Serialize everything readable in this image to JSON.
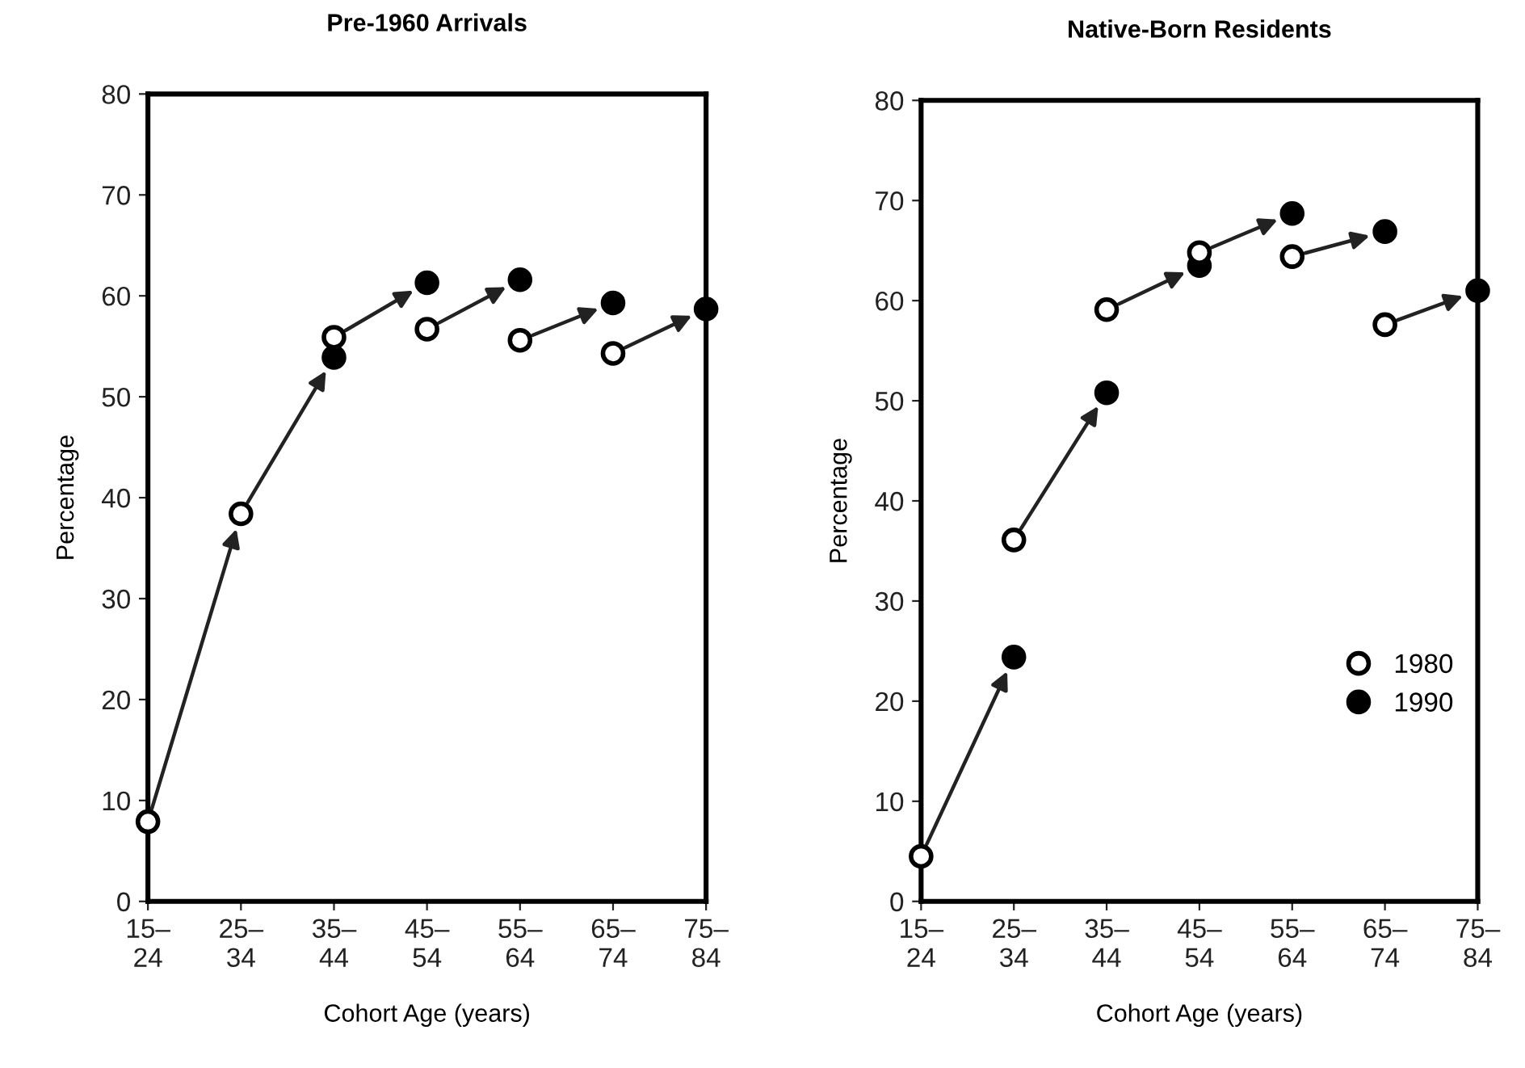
{
  "chart_data": [
    {
      "type": "scatter",
      "title": "Pre-1960 Arrivals",
      "xlabel": "Cohort Age (years)",
      "ylabel": "Percentage",
      "categories": [
        "15–\n24",
        "25–\n34",
        "35–\n44",
        "45–\n54",
        "55–\n64",
        "65–\n74",
        "75–\n84"
      ],
      "series": [
        {
          "color": "#ffffff",
          "values": [
            7.9,
            38.4,
            55.9,
            56.7,
            55.6,
            54.3,
            null
          ]
        },
        {
          "color": "#000000",
          "values": [
            null,
            null,
            53.9,
            61.3,
            61.6,
            59.3,
            58.7
          ]
        }
      ],
      "ylim": [
        0,
        80
      ],
      "yticks": [
        0,
        10,
        20,
        30,
        40,
        50,
        60,
        70,
        80
      ],
      "marker": "circle",
      "legend": false,
      "grid": false
    },
    {
      "type": "scatter",
      "title": "Native-Born Residents",
      "xlabel": "Cohort Age (years)",
      "ylabel": "Percentage",
      "categories": [
        "15–\n24",
        "25–\n34",
        "35–\n44",
        "45–\n54",
        "55–\n64",
        "65–\n74",
        "75–\n84"
      ],
      "series": [
        {
          "name": "1980",
          "color": "#ffffff",
          "values": [
            4.5,
            36.1,
            59.1,
            64.8,
            64.4,
            57.6,
            null
          ]
        },
        {
          "name": "1990",
          "color": "#000000",
          "values": [
            null,
            24.4,
            50.8,
            63.5,
            68.7,
            66.9,
            61.0
          ]
        }
      ],
      "ylim": [
        0,
        80
      ],
      "yticks": [
        0,
        10,
        20,
        30,
        40,
        50,
        60,
        70,
        80
      ],
      "marker": "circle",
      "legend": "lower right",
      "grid": false
    }
  ]
}
